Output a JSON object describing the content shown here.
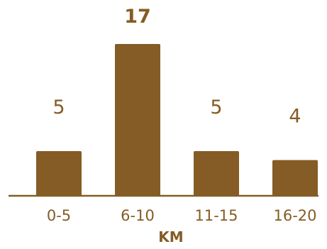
{
  "chart_data": {
    "type": "bar",
    "categories": [
      "0-5",
      "6-10",
      "11-15",
      "16-20"
    ],
    "values": [
      5,
      17,
      5,
      4
    ],
    "title": "",
    "xlabel": "KM",
    "ylabel": "",
    "ylim": [
      0,
      17
    ],
    "grid": false,
    "legend": "none",
    "highlight_max_label_bold": true
  },
  "colors": {
    "bar": "#855c25",
    "axis": "#855c25",
    "value_label": "#855c25",
    "tick_label": "#855c25",
    "axis_title": "#855c25",
    "background": "#ffffff"
  }
}
